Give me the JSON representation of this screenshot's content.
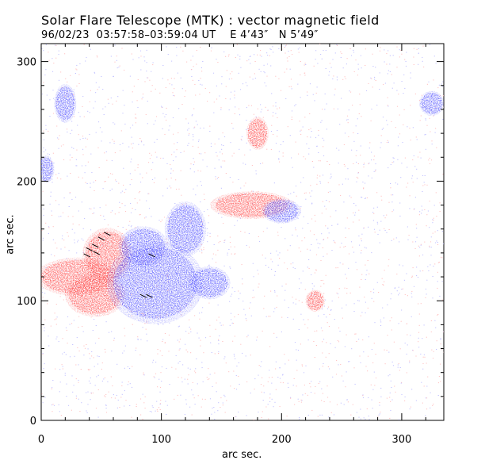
{
  "header": {
    "title": "Solar Flare Telescope (MTK) : vector magnetic field",
    "subtitle": "96/02/23  03:57:58–03:59:04 UT    E 4’43″   N 5’49″"
  },
  "axes": {
    "xlabel": "arc sec.",
    "ylabel": "arc sec.",
    "x_ticks": [
      "0",
      "100",
      "200",
      "300"
    ],
    "y_ticks": [
      "0",
      "100",
      "200",
      "300"
    ],
    "x_range": [
      0,
      335
    ],
    "y_range": [
      0,
      315
    ]
  },
  "colors": {
    "positive": "#ff4d4d",
    "negative": "#5a5aff",
    "noise_pos": "#ffc0c0",
    "noise_neg": "#c0c0ff"
  },
  "regions": [
    {
      "polarity": "positive",
      "cx": 55,
      "cy": 138,
      "rx": 18,
      "ry": 20
    },
    {
      "polarity": "positive",
      "cx": 30,
      "cy": 120,
      "rx": 30,
      "ry": 14
    },
    {
      "polarity": "positive",
      "cx": 45,
      "cy": 105,
      "rx": 22,
      "ry": 16
    },
    {
      "polarity": "negative",
      "cx": 95,
      "cy": 115,
      "rx": 35,
      "ry": 30
    },
    {
      "polarity": "negative",
      "cx": 85,
      "cy": 145,
      "rx": 18,
      "ry": 15
    },
    {
      "polarity": "negative",
      "cx": 120,
      "cy": 160,
      "rx": 15,
      "ry": 20
    },
    {
      "polarity": "negative",
      "cx": 140,
      "cy": 115,
      "rx": 15,
      "ry": 12
    },
    {
      "polarity": "positive",
      "cx": 175,
      "cy": 180,
      "rx": 30,
      "ry": 10
    },
    {
      "polarity": "negative",
      "cx": 200,
      "cy": 175,
      "rx": 14,
      "ry": 9
    },
    {
      "polarity": "positive",
      "cx": 228,
      "cy": 100,
      "rx": 7,
      "ry": 8
    },
    {
      "polarity": "negative",
      "cx": 20,
      "cy": 265,
      "rx": 8,
      "ry": 14
    },
    {
      "polarity": "negative",
      "cx": 325,
      "cy": 265,
      "rx": 9,
      "ry": 9
    },
    {
      "polarity": "negative",
      "cx": 4,
      "cy": 210,
      "rx": 6,
      "ry": 10
    },
    {
      "polarity": "positive",
      "cx": 180,
      "cy": 240,
      "rx": 8,
      "ry": 12
    }
  ],
  "vectors": [
    {
      "x": 40,
      "y": 143
    },
    {
      "x": 45,
      "y": 146
    },
    {
      "x": 50,
      "y": 152
    },
    {
      "x": 55,
      "y": 156
    },
    {
      "x": 38,
      "y": 138
    },
    {
      "x": 46,
      "y": 140
    },
    {
      "x": 85,
      "y": 104
    },
    {
      "x": 90,
      "y": 104
    },
    {
      "x": 92,
      "y": 138
    }
  ]
}
